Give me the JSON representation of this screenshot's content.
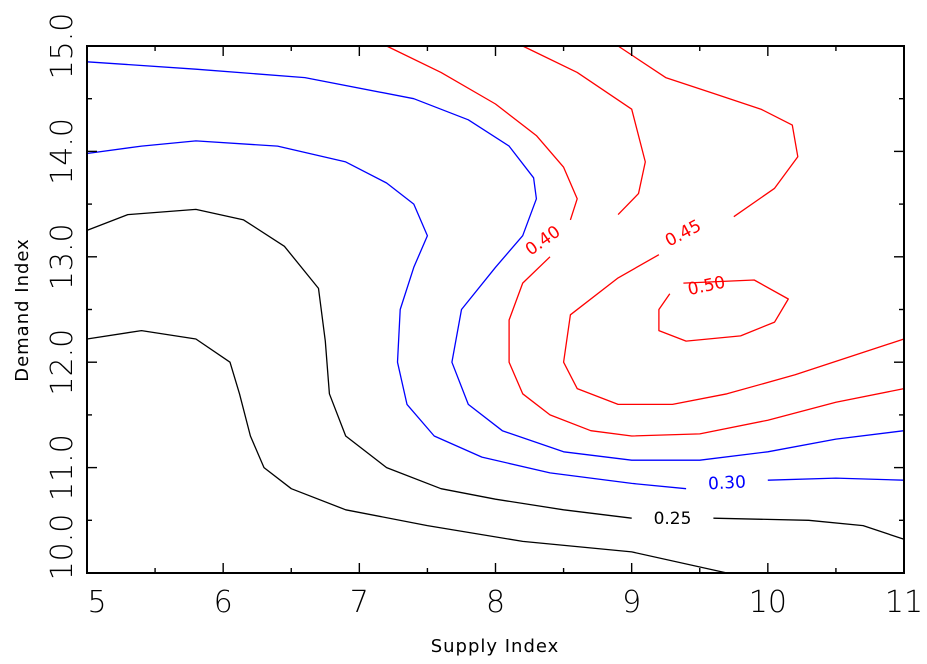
{
  "chart_data": {
    "type": "contour",
    "xlabel": "Supply Index",
    "ylabel": "Demand Index",
    "xlim": [
      5,
      11
    ],
    "ylim": [
      10,
      15
    ],
    "x_ticks": [
      {
        "value": 5,
        "label": "5"
      },
      {
        "value": 6,
        "label": "6"
      },
      {
        "value": 7,
        "label": "7"
      },
      {
        "value": 8,
        "label": "8"
      },
      {
        "value": 9,
        "label": "9"
      },
      {
        "value": 10,
        "label": "10"
      },
      {
        "value": 11,
        "label": "11"
      }
    ],
    "y_ticks": [
      {
        "value": 10,
        "label": "10.0"
      },
      {
        "value": 11,
        "label": "11.0"
      },
      {
        "value": 12,
        "label": "12.0"
      },
      {
        "value": 13,
        "label": "13.0"
      },
      {
        "value": 14,
        "label": "14.0"
      },
      {
        "value": 15,
        "label": "15.0"
      }
    ],
    "x_minor_step": 0.5,
    "y_minor_step": 0.5,
    "colors": {
      "black": "#000000",
      "blue": "#0000ff",
      "red": "#ff0000"
    },
    "contours": [
      {
        "color": "#000000",
        "points": [
          [
            5,
            12.22
          ],
          [
            5.4,
            12.3
          ],
          [
            5.8,
            12.22
          ],
          [
            6.05,
            12.0
          ],
          [
            6.12,
            11.7
          ],
          [
            6.2,
            11.3
          ],
          [
            6.3,
            11.0
          ],
          [
            6.5,
            10.8
          ],
          [
            6.9,
            10.6
          ],
          [
            7.5,
            10.45
          ],
          [
            8.2,
            10.3
          ],
          [
            9.0,
            10.2
          ],
          [
            9.7,
            10.0
          ]
        ]
      },
      {
        "color": "#000000",
        "points": [
          [
            5,
            13.25
          ],
          [
            5.3,
            13.4
          ],
          [
            5.8,
            13.45
          ],
          [
            6.15,
            13.35
          ],
          [
            6.45,
            13.1
          ],
          [
            6.7,
            12.7
          ],
          [
            6.75,
            12.2
          ],
          [
            6.78,
            11.7
          ],
          [
            6.9,
            11.3
          ],
          [
            7.2,
            11.0
          ],
          [
            7.6,
            10.8
          ],
          [
            8.0,
            10.7
          ],
          [
            8.5,
            10.6
          ],
          [
            9.0,
            10.52
          ]
        ]
      },
      {
        "color": "#000000",
        "points": [
          [
            9.6,
            10.52
          ],
          [
            10.3,
            10.5
          ],
          [
            10.7,
            10.45
          ],
          [
            11.0,
            10.32
          ]
        ]
      },
      {
        "color": "#0000ff",
        "points": [
          [
            5,
            13.98
          ],
          [
            5.4,
            14.05
          ],
          [
            5.8,
            14.1
          ],
          [
            6.4,
            14.05
          ],
          [
            6.9,
            13.9
          ],
          [
            7.2,
            13.7
          ],
          [
            7.4,
            13.5
          ],
          [
            7.5,
            13.2
          ],
          [
            7.4,
            12.9
          ],
          [
            7.3,
            12.5
          ],
          [
            7.28,
            12.0
          ],
          [
            7.35,
            11.6
          ],
          [
            7.55,
            11.3
          ],
          [
            7.9,
            11.1
          ],
          [
            8.4,
            10.95
          ],
          [
            9.0,
            10.85
          ],
          [
            9.4,
            10.8
          ]
        ]
      },
      {
        "color": "#0000ff",
        "points": [
          [
            10.0,
            10.88
          ],
          [
            10.5,
            10.9
          ],
          [
            11.0,
            10.88
          ]
        ]
      },
      {
        "color": "#0000ff",
        "points": [
          [
            5,
            14.85
          ],
          [
            5.8,
            14.78
          ],
          [
            6.6,
            14.7
          ],
          [
            7.4,
            14.5
          ],
          [
            7.8,
            14.3
          ],
          [
            8.1,
            14.05
          ],
          [
            8.28,
            13.75
          ],
          [
            8.3,
            13.55
          ],
          [
            8.2,
            13.2
          ],
          [
            8.0,
            12.9
          ],
          [
            7.75,
            12.5
          ],
          [
            7.68,
            12.0
          ],
          [
            7.8,
            11.6
          ],
          [
            8.05,
            11.35
          ],
          [
            8.5,
            11.15
          ],
          [
            9.0,
            11.07
          ],
          [
            9.5,
            11.07
          ],
          [
            10.0,
            11.15
          ],
          [
            10.5,
            11.27
          ],
          [
            11.0,
            11.35
          ]
        ]
      },
      {
        "color": "#ff0000",
        "points": [
          [
            7.2,
            15.0
          ],
          [
            7.6,
            14.75
          ],
          [
            8.0,
            14.45
          ],
          [
            8.3,
            14.15
          ],
          [
            8.5,
            13.85
          ],
          [
            8.6,
            13.55
          ],
          [
            8.55,
            13.35
          ]
        ]
      },
      {
        "color": "#ff0000",
        "points": [
          [
            8.4,
            13.0
          ],
          [
            8.2,
            12.75
          ],
          [
            8.1,
            12.4
          ],
          [
            8.1,
            12.0
          ],
          [
            8.2,
            11.7
          ],
          [
            8.4,
            11.5
          ],
          [
            8.7,
            11.35
          ],
          [
            9.0,
            11.3
          ],
          [
            9.5,
            11.32
          ],
          [
            10.0,
            11.45
          ],
          [
            10.5,
            11.62
          ],
          [
            11.0,
            11.75
          ]
        ]
      },
      {
        "color": "#ff0000",
        "points": [
          [
            8.2,
            15.0
          ],
          [
            8.6,
            14.75
          ],
          [
            9.0,
            14.4
          ],
          [
            9.1,
            13.9
          ],
          [
            9.05,
            13.6
          ],
          [
            8.9,
            13.4
          ]
        ]
      },
      {
        "color": "#ff0000",
        "points": [
          [
            8.3,
            13.45
          ]
        ]
      },
      {
        "color": "#ff0000",
        "points": [
          [
            9.75,
            13.38
          ],
          [
            10.05,
            13.65
          ],
          [
            10.22,
            13.95
          ],
          [
            10.18,
            14.25
          ],
          [
            9.95,
            14.4
          ],
          [
            9.6,
            14.55
          ],
          [
            9.25,
            14.7
          ],
          [
            8.9,
            15.0
          ]
        ]
      },
      {
        "color": "#ff0000",
        "points": [
          [
            9.2,
            13.02
          ],
          [
            8.9,
            12.8
          ],
          [
            8.55,
            12.45
          ],
          [
            8.5,
            12.0
          ],
          [
            8.6,
            11.75
          ],
          [
            8.9,
            11.6
          ],
          [
            9.3,
            11.6
          ],
          [
            9.7,
            11.7
          ],
          [
            10.2,
            11.88
          ],
          [
            10.6,
            12.05
          ],
          [
            11.0,
            12.22
          ]
        ]
      },
      {
        "color": "#ff0000",
        "points": [
          [
            9.38,
            12.75
          ],
          [
            9.9,
            12.78
          ],
          [
            10.15,
            12.6
          ],
          [
            10.05,
            12.38
          ],
          [
            9.8,
            12.25
          ],
          [
            9.4,
            12.2
          ],
          [
            9.2,
            12.3
          ],
          [
            9.2,
            12.5
          ],
          [
            9.28,
            12.65
          ]
        ]
      }
    ],
    "labels": [
      {
        "text": "0.25",
        "x": 9.3,
        "y": 10.51,
        "angle": 0,
        "color": "#000000"
      },
      {
        "text": "0.30",
        "x": 9.7,
        "y": 10.85,
        "angle": -3,
        "color": "#0000ff"
      },
      {
        "text": "0.40",
        "x": 8.35,
        "y": 13.15,
        "angle": -35,
        "color": "#ff0000"
      },
      {
        "text": "0.45",
        "x": 9.38,
        "y": 13.22,
        "angle": -28,
        "color": "#ff0000"
      },
      {
        "text": "0.50",
        "x": 9.55,
        "y": 12.72,
        "angle": -12,
        "color": "#ff0000"
      }
    ]
  }
}
